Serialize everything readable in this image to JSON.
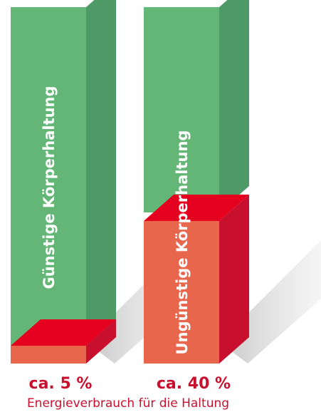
{
  "chart_data": {
    "type": "bar",
    "categories": [
      "Günstige Körperhaltung",
      "Ungünstige Körperhaltung"
    ],
    "values": [
      5,
      40
    ],
    "value_labels": [
      "ca. 5 %",
      "ca. 40 %"
    ],
    "caption": "Energieverbrauch für die Haltung",
    "stacked": true,
    "colors": {
      "energy": "#e8664b",
      "energy_side": "#c8102e",
      "energy_top": "#e4001e",
      "rest": "#64b677",
      "rest_side": "#4d9a66",
      "text_accent": "#c8102e"
    }
  }
}
